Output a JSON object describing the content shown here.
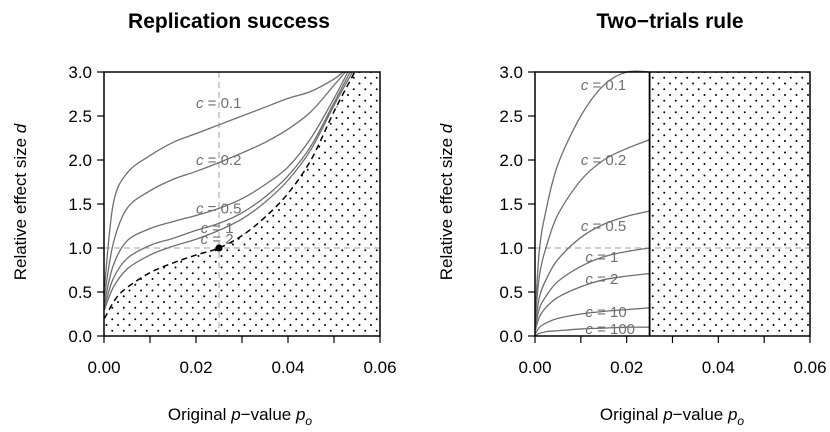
{
  "chart_data": [
    {
      "type": "line",
      "title": "Replication success",
      "xlabel": "Original p−value p_o",
      "xlabel_parts": {
        "pre": "Original ",
        "var": "p",
        "mid": "−value ",
        "var2": "p",
        "sub": "o"
      },
      "ylabel": "Relative effect size d",
      "ylabel_parts": {
        "pre": "Relative effect size ",
        "var": "d"
      },
      "xlim": [
        0,
        0.06
      ],
      "ylim": [
        0,
        3.0
      ],
      "xticks": [
        "0.00",
        "0.02",
        "0.04",
        "0.06"
      ],
      "xtick_values": [
        0,
        0.02,
        0.04,
        0.06
      ],
      "yticks": [
        "0.0",
        "0.5",
        "1.0",
        "1.5",
        "2.0",
        "2.5",
        "3.0"
      ],
      "ytick_values": [
        0,
        0.5,
        1.0,
        1.5,
        2.0,
        2.5,
        3.0
      ],
      "reference_lines": {
        "vertical_x": 0.025,
        "horizontal_y": 1.0
      },
      "series": [
        {
          "label": "c = 0.1",
          "x": [
            0.0001,
            0.002,
            0.005,
            0.01,
            0.015,
            0.02,
            0.025,
            0.03,
            0.035,
            0.04,
            0.045,
            0.05,
            0.052
          ],
          "y": [
            0.55,
            1.5,
            1.85,
            2.05,
            2.2,
            2.3,
            2.4,
            2.5,
            2.6,
            2.7,
            2.78,
            2.92,
            3.0
          ]
        },
        {
          "label": "c = 0.2",
          "x": [
            0.0001,
            0.002,
            0.005,
            0.01,
            0.015,
            0.02,
            0.025,
            0.03,
            0.035,
            0.04,
            0.045,
            0.05,
            0.0525
          ],
          "y": [
            0.45,
            1.05,
            1.45,
            1.65,
            1.78,
            1.87,
            1.97,
            2.08,
            2.2,
            2.35,
            2.55,
            2.85,
            3.0
          ]
        },
        {
          "label": "c = 0.5",
          "x": [
            0.0001,
            0.002,
            0.005,
            0.01,
            0.015,
            0.02,
            0.025,
            0.03,
            0.035,
            0.04,
            0.045,
            0.05,
            0.053
          ],
          "y": [
            0.38,
            0.8,
            1.08,
            1.22,
            1.3,
            1.37,
            1.45,
            1.56,
            1.72,
            1.92,
            2.25,
            2.7,
            3.0
          ]
        },
        {
          "label": "c = 1",
          "x": [
            0.0001,
            0.002,
            0.005,
            0.01,
            0.015,
            0.02,
            0.025,
            0.03,
            0.035,
            0.04,
            0.045,
            0.05,
            0.0535
          ],
          "y": [
            0.33,
            0.65,
            0.88,
            1.03,
            1.11,
            1.2,
            1.28,
            1.4,
            1.58,
            1.82,
            2.16,
            2.65,
            3.0
          ]
        },
        {
          "label": "c = 2",
          "x": [
            0.0001,
            0.002,
            0.005,
            0.01,
            0.015,
            0.02,
            0.025,
            0.03,
            0.035,
            0.04,
            0.045,
            0.05,
            0.054
          ],
          "y": [
            0.3,
            0.55,
            0.76,
            0.92,
            1.02,
            1.1,
            1.2,
            1.33,
            1.52,
            1.77,
            2.12,
            2.62,
            3.0
          ]
        }
      ],
      "threshold": {
        "x": [
          0.0001,
          0.0025,
          0.005,
          0.01,
          0.015,
          0.02,
          0.025,
          0.03,
          0.035,
          0.04,
          0.045,
          0.05,
          0.0545
        ],
        "y": [
          0.2,
          0.42,
          0.55,
          0.72,
          0.83,
          0.92,
          1.0,
          1.14,
          1.35,
          1.62,
          2.0,
          2.55,
          3.0
        ]
      },
      "highlight_point": {
        "x": 0.025,
        "y": 1.0
      },
      "label_anchors": [
        {
          "x": 0.02,
          "y": 2.65
        },
        {
          "x": 0.02,
          "y": 2.0
        },
        {
          "x": 0.02,
          "y": 1.45
        },
        {
          "x": 0.021,
          "y": 1.23
        },
        {
          "x": 0.021,
          "y": 1.1
        }
      ],
      "shaded_region": "dotted region below the dashed threshold curve"
    },
    {
      "type": "line",
      "title": "Two−trials rule",
      "xlabel": "Original p−value p_o",
      "xlabel_parts": {
        "pre": "Original ",
        "var": "p",
        "mid": "−value ",
        "var2": "p",
        "sub": "o"
      },
      "ylabel": "Relative effect size d",
      "ylabel_parts": {
        "pre": "Relative effect size ",
        "var": "d"
      },
      "xlim": [
        0,
        0.06
      ],
      "ylim": [
        0,
        3.0
      ],
      "xticks": [
        "0.00",
        "0.02",
        "0.04",
        "0.06"
      ],
      "xtick_values": [
        0,
        0.02,
        0.04,
        0.06
      ],
      "yticks": [
        "0.0",
        "0.5",
        "1.0",
        "1.5",
        "2.0",
        "2.5",
        "3.0"
      ],
      "ytick_values": [
        0,
        0.5,
        1.0,
        1.5,
        2.0,
        2.5,
        3.0
      ],
      "reference_lines": {
        "horizontal_y": 1.0
      },
      "boundary_x": 0.025,
      "series": [
        {
          "label": "c = 0.1",
          "x": [
            0.0001,
            0.001,
            0.0025,
            0.005,
            0.01,
            0.015,
            0.02,
            0.025
          ],
          "y": [
            0.3,
            1.0,
            1.45,
            1.95,
            2.5,
            2.85,
            3.0,
            3.0
          ]
        },
        {
          "label": "c = 0.2",
          "x": [
            0.0001,
            0.001,
            0.0025,
            0.005,
            0.01,
            0.015,
            0.02,
            0.025
          ],
          "y": [
            0.22,
            0.7,
            1.02,
            1.38,
            1.77,
            2.0,
            2.13,
            2.23
          ]
        },
        {
          "label": "c = 0.5",
          "x": [
            0.0001,
            0.001,
            0.0025,
            0.005,
            0.01,
            0.015,
            0.02,
            0.025
          ],
          "y": [
            0.14,
            0.45,
            0.65,
            0.87,
            1.12,
            1.27,
            1.36,
            1.42
          ]
        },
        {
          "label": "c = 1",
          "x": [
            0.0001,
            0.001,
            0.0025,
            0.005,
            0.01,
            0.015,
            0.02,
            0.025
          ],
          "y": [
            0.1,
            0.32,
            0.46,
            0.62,
            0.79,
            0.9,
            0.96,
            1.0
          ]
        },
        {
          "label": "c = 2",
          "x": [
            0.0001,
            0.001,
            0.0025,
            0.005,
            0.01,
            0.015,
            0.02,
            0.025
          ],
          "y": [
            0.07,
            0.22,
            0.33,
            0.44,
            0.56,
            0.64,
            0.68,
            0.71
          ]
        },
        {
          "label": "c = 10",
          "x": [
            0.0001,
            0.001,
            0.0025,
            0.005,
            0.01,
            0.015,
            0.02,
            0.025
          ],
          "y": [
            0.03,
            0.1,
            0.15,
            0.2,
            0.25,
            0.28,
            0.3,
            0.32
          ]
        },
        {
          "label": "c = 100",
          "x": [
            0.0001,
            0.001,
            0.0025,
            0.005,
            0.01,
            0.015,
            0.02,
            0.025
          ],
          "y": [
            0.01,
            0.03,
            0.05,
            0.06,
            0.08,
            0.09,
            0.1,
            0.1
          ]
        }
      ],
      "label_anchors": [
        {
          "x": 0.01,
          "y": 2.85
        },
        {
          "x": 0.01,
          "y": 2.0
        },
        {
          "x": 0.01,
          "y": 1.25
        },
        {
          "x": 0.011,
          "y": 0.9
        },
        {
          "x": 0.011,
          "y": 0.65
        },
        {
          "x": 0.011,
          "y": 0.27
        },
        {
          "x": 0.011,
          "y": 0.08
        }
      ],
      "shaded_region": "dotted region to the right of p_o = 0.025"
    }
  ]
}
